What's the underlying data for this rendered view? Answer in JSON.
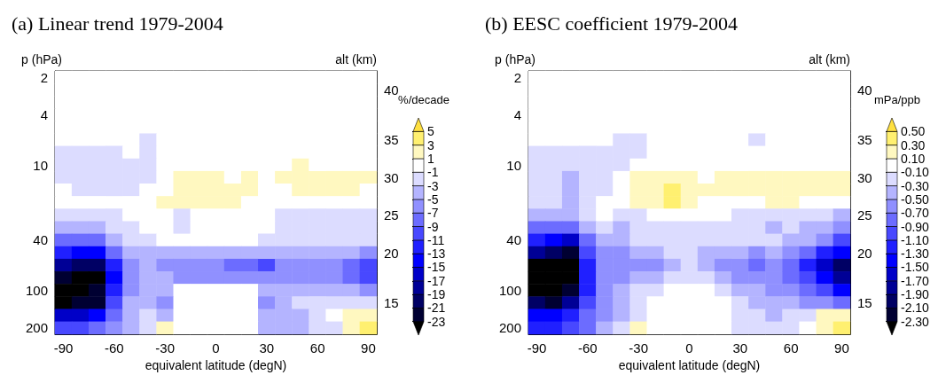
{
  "chart_data": [
    {
      "type": "heatmap",
      "title": "(a) Linear trend 1979-2004",
      "xlabel": "equivalent latitude (degN)",
      "ylabel": "p (hPa)",
      "y2label": "alt (km)",
      "clabel": "%/decade",
      "categories": [
        "-90",
        null,
        null,
        "-60",
        null,
        null,
        "-30",
        null,
        null,
        "0",
        null,
        null,
        "30",
        null,
        null,
        "60",
        null,
        null,
        "90"
      ],
      "y_categories": [
        "2",
        null,
        null,
        "4",
        null,
        null,
        null,
        "10",
        null,
        null,
        null,
        null,
        null,
        "40",
        null,
        null,
        null,
        "100",
        null,
        null,
        "200"
      ],
      "y2_categories": [
        null,
        "40",
        null,
        null,
        null,
        "35",
        null,
        null,
        "30",
        null,
        null,
        "25",
        null,
        null,
        "20",
        null,
        null,
        null,
        "15",
        null,
        null
      ],
      "clim": [
        -25,
        7
      ],
      "cticks": [
        -23,
        -21,
        -19,
        -17,
        -15,
        -13,
        -11,
        -9,
        -7,
        -5,
        -3,
        -1,
        1,
        3,
        5
      ],
      "colors": [
        "#000000",
        "#000032",
        "#000064",
        "#000096",
        "#0000c8",
        "#0000ff",
        "#2020ff",
        "#4848ff",
        "#6c6cff",
        "#9090ff",
        "#b4b4ff",
        "#dcdcff",
        "#ffffff",
        "#fff8c0",
        "#fff070",
        "#ffe040"
      ],
      "cells": [
        [
          0,
          0,
          0,
          0,
          0,
          0,
          0,
          0,
          0,
          0,
          0,
          0,
          0,
          0,
          0,
          0,
          0,
          0,
          0
        ],
        [
          0,
          0,
          0,
          0,
          0,
          0,
          0,
          0,
          0,
          0,
          0,
          0,
          0,
          0,
          0,
          0,
          0,
          0,
          0
        ],
        [
          0,
          0,
          0,
          0,
          0,
          0,
          0,
          0,
          0,
          0,
          0,
          0,
          0,
          0,
          0,
          0,
          0,
          0,
          0
        ],
        [
          0,
          0,
          0,
          0,
          0,
          0,
          0,
          0,
          0,
          0,
          0,
          0,
          0,
          0,
          0,
          0,
          0,
          0,
          0
        ],
        [
          0,
          0,
          0,
          0,
          0,
          0,
          0,
          0,
          0,
          0,
          0,
          0,
          0,
          0,
          0,
          0,
          0,
          0,
          0
        ],
        [
          0,
          0,
          0,
          0,
          0,
          -2,
          0,
          0,
          0,
          0,
          0,
          0,
          0,
          0,
          0,
          0,
          0,
          0,
          0
        ],
        [
          -2,
          -2,
          -2,
          -2,
          0,
          -2,
          0,
          0,
          0,
          0,
          0,
          0,
          0,
          0,
          0,
          0,
          0,
          0,
          0
        ],
        [
          -2,
          -2,
          -2,
          -2,
          -2,
          -2,
          0,
          0,
          0,
          0,
          0,
          0,
          0,
          0,
          2,
          0,
          0,
          0,
          0
        ],
        [
          -2,
          -2,
          -2,
          -2,
          -2,
          -2,
          0,
          2,
          2,
          2,
          0,
          2,
          0,
          2,
          2,
          2,
          2,
          2,
          2
        ],
        [
          0,
          -2,
          -2,
          -2,
          -2,
          0,
          0,
          2,
          2,
          2,
          2,
          2,
          0,
          0,
          2,
          2,
          2,
          2,
          0
        ],
        [
          0,
          0,
          0,
          0,
          0,
          0,
          2,
          2,
          2,
          2,
          2,
          0,
          0,
          0,
          0,
          0,
          0,
          0,
          0
        ],
        [
          -2,
          -2,
          -2,
          -2,
          0,
          0,
          0,
          -2,
          0,
          0,
          0,
          0,
          0,
          -2,
          -2,
          -2,
          -2,
          -2,
          -2
        ],
        [
          -4,
          -4,
          -4,
          -2,
          -2,
          0,
          0,
          -2,
          0,
          0,
          0,
          0,
          0,
          -2,
          -2,
          -2,
          -2,
          -2,
          -2
        ],
        [
          -8,
          -8,
          -8,
          -4,
          -2,
          -2,
          0,
          0,
          0,
          0,
          0,
          0,
          -2,
          -2,
          -2,
          -2,
          -2,
          -2,
          -2
        ],
        [
          -12,
          -14,
          -14,
          -8,
          -4,
          -4,
          -4,
          -4,
          -4,
          -4,
          -4,
          -4,
          -4,
          -4,
          -4,
          -4,
          -4,
          -4,
          -6
        ],
        [
          -18,
          -20,
          -20,
          -12,
          -6,
          -4,
          -6,
          -6,
          -6,
          -6,
          -8,
          -8,
          -10,
          -6,
          -6,
          -6,
          -6,
          -8,
          -10
        ],
        [
          -22,
          -24,
          -24,
          -14,
          -6,
          -4,
          -4,
          -6,
          -6,
          -6,
          -6,
          -6,
          -6,
          -6,
          -6,
          -6,
          -6,
          -8,
          -10
        ],
        [
          -24,
          -24,
          -22,
          -12,
          -6,
          -4,
          -4,
          0,
          0,
          0,
          0,
          0,
          -4,
          -4,
          -4,
          -4,
          -4,
          -4,
          -6
        ],
        [
          -24,
          -22,
          -22,
          -10,
          -4,
          -4,
          -6,
          0,
          0,
          0,
          0,
          0,
          -6,
          -4,
          -2,
          -2,
          -2,
          -2,
          -2
        ],
        [
          -16,
          -16,
          -14,
          -8,
          -4,
          -2,
          -4,
          0,
          0,
          0,
          0,
          0,
          -4,
          -4,
          -4,
          -2,
          0,
          2,
          2
        ],
        [
          -10,
          -10,
          -8,
          -6,
          -4,
          -2,
          2,
          0,
          0,
          0,
          0,
          0,
          -4,
          -4,
          -4,
          -2,
          -2,
          2,
          4
        ]
      ]
    },
    {
      "type": "heatmap",
      "title": "(b) EESC coefficient 1979-2004",
      "xlabel": "equivalent latitude (degN)",
      "ylabel": "p (hPa)",
      "y2label": "alt (km)",
      "clabel": "mPa/ppb",
      "categories": [
        "-90",
        null,
        null,
        "-60",
        null,
        null,
        "-30",
        null,
        null,
        "0",
        null,
        null,
        "30",
        null,
        null,
        "60",
        null,
        null,
        "90"
      ],
      "y_categories": [
        "2",
        null,
        null,
        "4",
        null,
        null,
        null,
        "10",
        null,
        null,
        null,
        null,
        null,
        "40",
        null,
        null,
        null,
        "100",
        null,
        null,
        "200"
      ],
      "y2_categories": [
        null,
        "40",
        null,
        null,
        null,
        "35",
        null,
        null,
        "30",
        null,
        null,
        "25",
        null,
        null,
        "20",
        null,
        null,
        null,
        "15",
        null,
        null
      ],
      "clim": [
        -2.5,
        0.7
      ],
      "cticks": [
        {
          "value": -2.3,
          "label": "-2.30"
        },
        {
          "value": -2.1,
          "label": "-2.10"
        },
        {
          "value": -1.9,
          "label": "-1.90"
        },
        {
          "value": -1.7,
          "label": "-1.70"
        },
        {
          "value": -1.5,
          "label": "-1.50"
        },
        {
          "value": -1.3,
          "label": "-1.30"
        },
        {
          "value": -1.1,
          "label": "-1.10"
        },
        {
          "value": -0.9,
          "label": "-0.90"
        },
        {
          "value": -0.7,
          "label": "-0.70"
        },
        {
          "value": -0.5,
          "label": "-0.50"
        },
        {
          "value": -0.3,
          "label": "-0.30"
        },
        {
          "value": -0.1,
          "label": "-0.10"
        },
        {
          "value": 0.1,
          "label": "0.10"
        },
        {
          "value": 0.3,
          "label": "0.30"
        },
        {
          "value": 0.5,
          "label": "0.50"
        }
      ],
      "colors": [
        "#000000",
        "#000032",
        "#000064",
        "#000096",
        "#0000c8",
        "#0000ff",
        "#2020ff",
        "#4848ff",
        "#6c6cff",
        "#9090ff",
        "#b4b4ff",
        "#dcdcff",
        "#ffffff",
        "#fff8c0",
        "#fff070",
        "#ffe040"
      ],
      "cells": [
        [
          0,
          0,
          0,
          0,
          0,
          0,
          0,
          0,
          0,
          0,
          0,
          0,
          0,
          0,
          0,
          0,
          0,
          0,
          0
        ],
        [
          0,
          0,
          0,
          0,
          0,
          0,
          0,
          0,
          0,
          0,
          0,
          0,
          0,
          0,
          0,
          0,
          0,
          0,
          0
        ],
        [
          0,
          0,
          0,
          0,
          0,
          0,
          0,
          0,
          0,
          0,
          0,
          0,
          0,
          0,
          0,
          0,
          0,
          0,
          0
        ],
        [
          0,
          0,
          0,
          0,
          0,
          0,
          0,
          0,
          0,
          0,
          0,
          0,
          0,
          0,
          0,
          0,
          0,
          0,
          0
        ],
        [
          0,
          0,
          0,
          0,
          0,
          0,
          0,
          0,
          0,
          0,
          0,
          0,
          0,
          0,
          0,
          0,
          0,
          0,
          0
        ],
        [
          0,
          0,
          0,
          0,
          0,
          -0.2,
          -0.2,
          0,
          0,
          0,
          0,
          0,
          0,
          -0.2,
          0,
          0,
          0,
          0,
          0
        ],
        [
          -0.2,
          -0.2,
          -0.2,
          -0.2,
          -0.2,
          -0.2,
          -0.2,
          0,
          0,
          0,
          0,
          0,
          0,
          0,
          0,
          0,
          0,
          0,
          0
        ],
        [
          -0.2,
          -0.2,
          -0.2,
          -0.2,
          -0.2,
          -0.2,
          0,
          0,
          0,
          0,
          0,
          0,
          0,
          0,
          0,
          0,
          0,
          0,
          0
        ],
        [
          -0.2,
          -0.2,
          -0.4,
          -0.2,
          -0.2,
          0,
          0.2,
          0.2,
          0.2,
          0.2,
          0,
          0.2,
          0.2,
          0.2,
          0.2,
          0.2,
          0.2,
          0.2,
          0.2
        ],
        [
          -0.2,
          -0.2,
          -0.4,
          -0.2,
          -0.2,
          0,
          0.2,
          0.2,
          0.4,
          0.2,
          0.2,
          0.2,
          0.2,
          0.2,
          0.2,
          0.2,
          0.2,
          0.2,
          0.2
        ],
        [
          -0.2,
          -0.2,
          -0.4,
          -0.2,
          0,
          0,
          0.2,
          0.2,
          0.4,
          0.2,
          0,
          0,
          0,
          0,
          0.2,
          0.2,
          0,
          0,
          0
        ],
        [
          -0.4,
          -0.4,
          -0.4,
          -0.2,
          0,
          -0.2,
          -0.2,
          0,
          0,
          0,
          0,
          0,
          -0.2,
          -0.2,
          -0.2,
          -0.2,
          -0.2,
          -0.2,
          -0.4
        ],
        [
          -0.8,
          -0.8,
          -0.8,
          -0.4,
          -0.2,
          -0.4,
          -0.2,
          -0.2,
          -0.2,
          -0.2,
          -0.2,
          -0.2,
          -0.2,
          -0.2,
          -0.4,
          -0.2,
          -0.4,
          -0.4,
          -0.6
        ],
        [
          -1.2,
          -1.4,
          -1.6,
          -0.8,
          -0.4,
          -0.4,
          -0.2,
          -0.2,
          -0.2,
          -0.2,
          -0.2,
          -0.2,
          -0.2,
          -0.2,
          -0.2,
          -0.4,
          -0.4,
          -0.6,
          -1.0
        ],
        [
          -1.8,
          -2.0,
          -2.2,
          -1.0,
          -0.6,
          -0.6,
          -0.4,
          -0.4,
          -0.2,
          -0.2,
          -0.4,
          -0.4,
          -0.4,
          -0.6,
          -0.4,
          -0.6,
          -0.8,
          -1.2,
          -1.4
        ],
        [
          -2.4,
          -2.4,
          -2.4,
          -1.2,
          -0.6,
          -0.6,
          -0.6,
          -0.6,
          -0.4,
          -0.2,
          -0.4,
          -0.6,
          -0.6,
          -0.8,
          -0.6,
          -0.8,
          -1.2,
          -1.6,
          -2.0
        ],
        [
          -2.4,
          -2.4,
          -2.4,
          -1.2,
          -0.6,
          -0.6,
          -0.4,
          -0.4,
          -0.2,
          -0.2,
          -0.2,
          -0.4,
          -0.6,
          -0.6,
          -0.6,
          -0.8,
          -1.0,
          -1.4,
          -1.8
        ],
        [
          -2.4,
          -2.4,
          -2.2,
          -1.2,
          -0.6,
          -0.4,
          -0.2,
          -0.2,
          0,
          0,
          0,
          -0.2,
          -0.4,
          -0.4,
          -0.6,
          -0.6,
          -0.8,
          -1.0,
          -1.4
        ],
        [
          -2.0,
          -2.2,
          -1.8,
          -1.0,
          -0.6,
          -0.4,
          -0.2,
          0,
          0,
          0,
          0,
          0,
          -0.2,
          -0.4,
          -0.4,
          -0.4,
          -0.6,
          -0.6,
          -0.8
        ],
        [
          -1.4,
          -1.4,
          -1.2,
          -0.8,
          -0.6,
          -0.4,
          -0.2,
          0,
          0,
          0,
          0,
          0,
          -0.2,
          -0.2,
          -0.4,
          -0.2,
          -0.2,
          0.2,
          0.2
        ],
        [
          -1.2,
          -1.2,
          -1.0,
          -0.8,
          -0.4,
          -0.2,
          0.2,
          0,
          0,
          0,
          0,
          0,
          -0.2,
          -0.2,
          -0.2,
          -0.2,
          0,
          0.2,
          0.4
        ]
      ]
    }
  ]
}
